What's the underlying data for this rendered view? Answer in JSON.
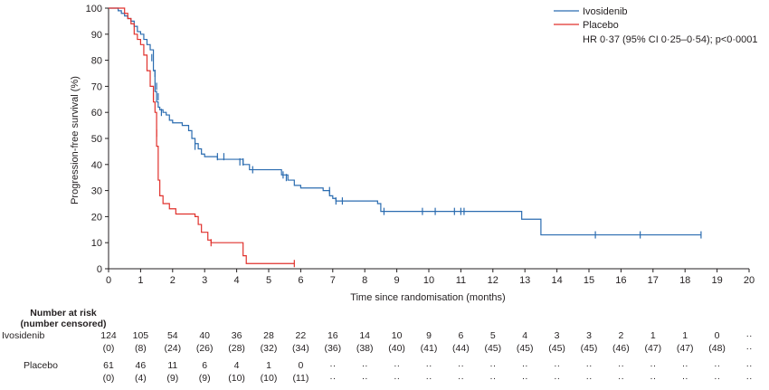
{
  "chart_data": {
    "type": "line",
    "title": "",
    "xlabel": "Time since randomisation (months)",
    "ylabel": "Progression-free survival (%)",
    "xlim": [
      0,
      20
    ],
    "ylim": [
      0,
      100
    ],
    "xticks": [
      "0",
      "1",
      "2",
      "3",
      "4",
      "5",
      "6",
      "7",
      "8",
      "9",
      "10",
      "11",
      "12",
      "13",
      "14",
      "15",
      "16",
      "17",
      "18",
      "19",
      "20"
    ],
    "yticks": [
      "0",
      "10",
      "20",
      "30",
      "40",
      "50",
      "60",
      "70",
      "80",
      "90",
      "100"
    ],
    "grid": false,
    "legend_position": "top-right",
    "colors": {
      "ivosidenib": "#2b6cb0",
      "placebo": "#e0312c"
    },
    "series": [
      {
        "name": "Ivosidenib",
        "steps": [
          [
            0,
            100
          ],
          [
            0.3,
            99
          ],
          [
            0.4,
            98
          ],
          [
            0.5,
            97
          ],
          [
            0.6,
            96
          ],
          [
            0.7,
            95
          ],
          [
            0.8,
            93
          ],
          [
            0.9,
            91
          ],
          [
            1.0,
            90
          ],
          [
            1.1,
            88
          ],
          [
            1.2,
            86
          ],
          [
            1.3,
            84
          ],
          [
            1.4,
            76
          ],
          [
            1.45,
            68
          ],
          [
            1.5,
            64
          ],
          [
            1.55,
            62
          ],
          [
            1.6,
            61
          ],
          [
            1.7,
            60
          ],
          [
            1.8,
            59
          ],
          [
            1.9,
            57
          ],
          [
            2.0,
            56
          ],
          [
            2.3,
            55
          ],
          [
            2.5,
            53
          ],
          [
            2.6,
            50
          ],
          [
            2.7,
            48
          ],
          [
            2.8,
            46
          ],
          [
            2.9,
            44
          ],
          [
            3.0,
            43
          ],
          [
            3.4,
            42
          ],
          [
            4.2,
            40
          ],
          [
            4.4,
            38
          ],
          [
            5.4,
            36
          ],
          [
            5.6,
            34
          ],
          [
            5.8,
            32
          ],
          [
            6.0,
            31
          ],
          [
            6.7,
            30
          ],
          [
            6.9,
            28
          ],
          [
            7.0,
            27
          ],
          [
            7.1,
            26
          ],
          [
            8.4,
            25
          ],
          [
            8.5,
            22
          ],
          [
            12.9,
            19
          ],
          [
            13.5,
            13
          ],
          [
            18.5,
            13
          ]
        ],
        "censored": [
          [
            1.35,
            81
          ],
          [
            1.45,
            75
          ],
          [
            1.5,
            70
          ],
          [
            1.55,
            66
          ],
          [
            1.65,
            60
          ],
          [
            2.7,
            47
          ],
          [
            3.4,
            43
          ],
          [
            3.6,
            43
          ],
          [
            4.1,
            41
          ],
          [
            4.2,
            41
          ],
          [
            4.5,
            38
          ],
          [
            5.45,
            36
          ],
          [
            5.55,
            35
          ],
          [
            6.9,
            30
          ],
          [
            7.1,
            26
          ],
          [
            7.3,
            26
          ],
          [
            8.6,
            22
          ],
          [
            9.8,
            22
          ],
          [
            10.2,
            22
          ],
          [
            10.8,
            22
          ],
          [
            11.0,
            22
          ],
          [
            11.1,
            22
          ],
          [
            15.2,
            13
          ],
          [
            16.6,
            13
          ],
          [
            18.5,
            13
          ]
        ]
      },
      {
        "name": "Placebo",
        "steps": [
          [
            0,
            100
          ],
          [
            0.5,
            98
          ],
          [
            0.6,
            96
          ],
          [
            0.7,
            94
          ],
          [
            0.8,
            90
          ],
          [
            0.9,
            88
          ],
          [
            1.0,
            86
          ],
          [
            1.1,
            82
          ],
          [
            1.2,
            76
          ],
          [
            1.3,
            70
          ],
          [
            1.4,
            64
          ],
          [
            1.45,
            60
          ],
          [
            1.5,
            47
          ],
          [
            1.55,
            34
          ],
          [
            1.6,
            28
          ],
          [
            1.7,
            25
          ],
          [
            1.9,
            23
          ],
          [
            2.1,
            21
          ],
          [
            2.7,
            20
          ],
          [
            2.8,
            17
          ],
          [
            2.9,
            14
          ],
          [
            3.1,
            11
          ],
          [
            3.2,
            10
          ],
          [
            4.2,
            5
          ],
          [
            4.3,
            2
          ],
          [
            5.8,
            2
          ]
        ],
        "censored": [
          [
            1.4,
            66
          ],
          [
            1.5,
            52
          ],
          [
            3.2,
            10
          ],
          [
            5.8,
            2
          ]
        ]
      }
    ]
  },
  "legend": {
    "ivosidenib_label": "Ivosidenib",
    "placebo_label": "Placebo",
    "hr_text": "HR 0·37 (95% CI 0·25–0·54); p<0·0001"
  },
  "risk_table": {
    "heading_line1": "Number at risk",
    "heading_line2": "(number censored)",
    "rows": [
      {
        "label": "Ivosidenib",
        "at_risk": [
          "124",
          "105",
          "54",
          "40",
          "36",
          "28",
          "22",
          "16",
          "14",
          "10",
          "9",
          "6",
          "5",
          "4",
          "3",
          "3",
          "2",
          "1",
          "1",
          "0",
          "··"
        ],
        "censored": [
          "(0)",
          "(8)",
          "(24)",
          "(26)",
          "(28)",
          "(32)",
          "(34)",
          "(36)",
          "(38)",
          "(40)",
          "(41)",
          "(44)",
          "(45)",
          "(45)",
          "(45)",
          "(45)",
          "(46)",
          "(47)",
          "(47)",
          "(48)",
          "··"
        ]
      },
      {
        "label": "Placebo",
        "at_risk": [
          "61",
          "46",
          "11",
          "6",
          "4",
          "1",
          "0",
          "··",
          "··",
          "··",
          "··",
          "··",
          "··",
          "··",
          "··",
          "··",
          "··",
          "··",
          "··",
          "··",
          "··"
        ],
        "censored": [
          "(0)",
          "(4)",
          "(9)",
          "(9)",
          "(10)",
          "(10)",
          "(11)",
          "··",
          "··",
          "··",
          "··",
          "··",
          "··",
          "··",
          "··",
          "··",
          "··",
          "··",
          "··",
          "··",
          "··"
        ]
      }
    ]
  }
}
